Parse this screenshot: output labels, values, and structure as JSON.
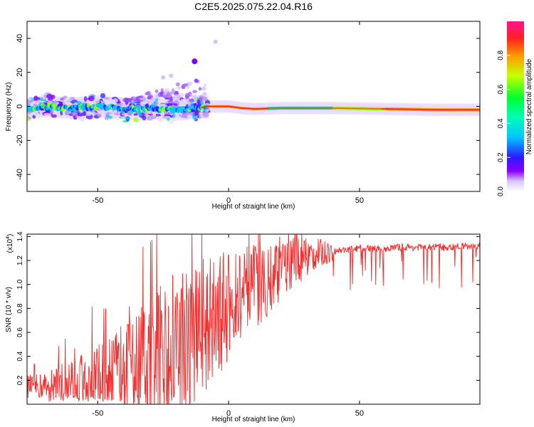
{
  "colors": {
    "snr_line": "#ee3030",
    "frame": "#000000",
    "colormap": [
      "#ffffff",
      "#dcc8ff",
      "#8000ff",
      "#2a1aff",
      "#00d0ff",
      "#00ff60",
      "#c8ff00",
      "#ff9a00",
      "#ff2a2a",
      "#ff1a8c"
    ]
  },
  "chart_data": [
    {
      "type": "heatmap",
      "title": "C2E5.2025.075.22.04.R16",
      "xlabel": "Height of straight line (km)",
      "ylabel": "Frequency (Hz)",
      "xlim": [
        -77,
        96
      ],
      "ylim": [
        -50,
        50
      ],
      "x_ticks": [
        -50,
        0,
        50
      ],
      "y_ticks": [
        -40,
        -20,
        0,
        20,
        40
      ],
      "colorbar": {
        "label": "Normalized spectral amplitude",
        "range": [
          0,
          1
        ],
        "ticks": [
          "0.0",
          "0.2",
          "0.4",
          "0.6",
          "0.8"
        ]
      },
      "ridge": [
        [
          -77,
          -1.5
        ],
        [
          -70,
          0
        ],
        [
          -60,
          -1
        ],
        [
          -50,
          0
        ],
        [
          -40,
          -1.5
        ],
        [
          -30,
          -1
        ],
        [
          -20,
          -2
        ],
        [
          -12,
          -1
        ],
        [
          -8,
          0
        ],
        [
          0,
          0
        ],
        [
          5,
          -1
        ],
        [
          10,
          -1.5
        ],
        [
          20,
          -1
        ],
        [
          40,
          -1
        ],
        [
          60,
          -1.5
        ],
        [
          80,
          -2
        ],
        [
          96,
          -2
        ]
      ],
      "outlier_points": [
        {
          "x": -13,
          "y": 26.5
        },
        {
          "x": -5,
          "y": 38
        },
        {
          "x": -25,
          "y": 17
        },
        {
          "x": -22,
          "y": 18
        }
      ]
    },
    {
      "type": "line",
      "xlabel": "Height of straight line (km)",
      "ylabel": "SNR (10 * v/v)",
      "y_multiplier": "(x10",
      "y_multiplier_exp": "4",
      "xlim": [
        -77,
        96
      ],
      "ylim": [
        0.0,
        1.42
      ],
      "x_ticks": [
        -50,
        0,
        50
      ],
      "y_ticks": [
        "0.2",
        "0.4",
        "0.6",
        "0.8",
        "1.0",
        "1.2",
        "1.4"
      ],
      "series": [
        {
          "x": [
            -77,
            -70,
            -65,
            -60,
            -55,
            -50,
            -45,
            -40,
            -35,
            -30,
            -25,
            -20,
            -15,
            -10,
            -5,
            0,
            5,
            10,
            15,
            20,
            25,
            30,
            35,
            40,
            45,
            50,
            55,
            60,
            65,
            70,
            75,
            80,
            85,
            90,
            96
          ],
          "y": [
            0.15,
            0.15,
            0.16,
            0.16,
            0.17,
            0.18,
            0.2,
            0.23,
            0.3,
            0.38,
            0.45,
            0.52,
            0.58,
            0.65,
            0.72,
            0.8,
            0.88,
            0.97,
            1.06,
            1.13,
            1.19,
            1.23,
            1.26,
            1.28,
            1.29,
            1.3,
            1.3,
            1.3,
            1.31,
            1.31,
            1.31,
            1.31,
            1.31,
            1.32,
            1.32
          ]
        }
      ]
    }
  ]
}
